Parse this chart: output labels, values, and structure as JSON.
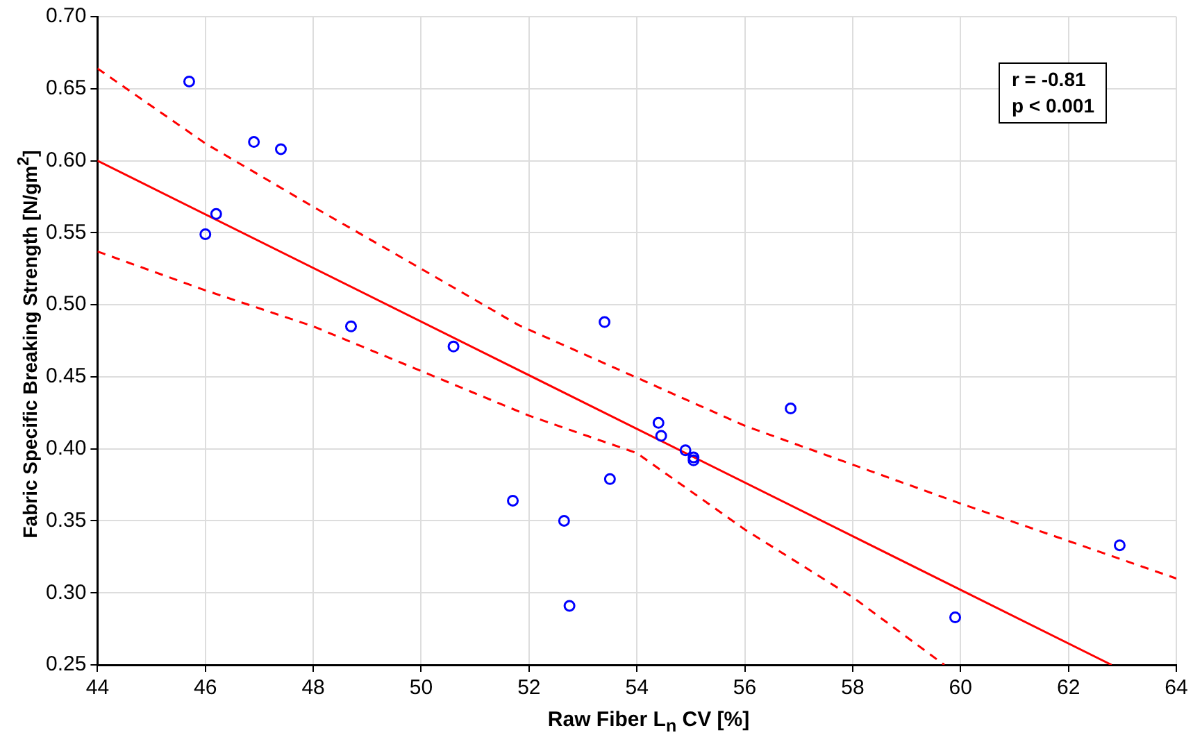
{
  "chart_data": {
    "type": "scatter",
    "xlabel": "Raw Fiber L$_{n}$ CV [%]",
    "ylabel": "Fabric Specific Breaking Strength [N/gm$^{2}$]",
    "annotations": [
      "r = -0.81",
      "p < 0.001"
    ],
    "xlim": [
      44,
      64
    ],
    "xticks": [
      44,
      46,
      48,
      50,
      52,
      54,
      56,
      58,
      60,
      62,
      64
    ],
    "ylim": [
      0.25,
      0.7
    ],
    "yticks": [
      {
        "value": 0.25,
        "label": "0.25"
      },
      {
        "value": 0.3,
        "label": "0.30"
      },
      {
        "value": 0.35,
        "label": "0.35"
      },
      {
        "value": 0.4,
        "label": "0.40"
      },
      {
        "value": 0.45,
        "label": "0.45"
      },
      {
        "value": 0.5,
        "label": "0.50"
      },
      {
        "value": 0.55,
        "label": "0.55"
      },
      {
        "value": 0.6,
        "label": "0.60"
      },
      {
        "value": 0.65,
        "label": "0.65"
      },
      {
        "value": 0.7,
        "label": "0.70"
      }
    ],
    "grid": true,
    "legend": false,
    "series": [
      {
        "type": "scatter",
        "color": "#0000ff",
        "marker": "circle",
        "x": [
          45.7,
          46.9,
          47.4,
          46.2,
          46.0,
          48.7,
          50.6,
          53.4,
          51.7,
          52.65,
          52.75,
          53.5,
          54.4,
          54.45,
          54.9,
          55.05,
          55.05,
          56.85,
          59.9,
          62.95
        ],
        "values": [
          0.655,
          0.613,
          0.608,
          0.563,
          0.549,
          0.485,
          0.471,
          0.488,
          0.364,
          0.35,
          0.291,
          0.379,
          0.418,
          0.409,
          0.399,
          0.394,
          0.392,
          0.428,
          0.283,
          0.333
        ]
      },
      {
        "type": "line",
        "color": "#ff0000",
        "marker": "none",
        "line_style": "solid",
        "x": [
          44,
          62.8
        ],
        "values": [
          0.6,
          0.25
        ]
      },
      {
        "type": "line",
        "color": "#ff0000",
        "marker": "none",
        "line_style": "dashed",
        "x": [
          44,
          46,
          48,
          50,
          51.8,
          56,
          60,
          64
        ],
        "values": [
          0.664,
          0.612,
          0.568,
          0.525,
          0.486,
          0.416,
          0.362,
          0.31
        ]
      },
      {
        "type": "line",
        "color": "#ff0000",
        "marker": "none",
        "line_style": "dashed",
        "x": [
          44,
          46,
          48,
          50,
          52,
          54,
          56,
          58,
          59.7
        ],
        "values": [
          0.537,
          0.51,
          0.485,
          0.454,
          0.423,
          0.397,
          0.344,
          0.297,
          0.25
        ]
      }
    ]
  }
}
